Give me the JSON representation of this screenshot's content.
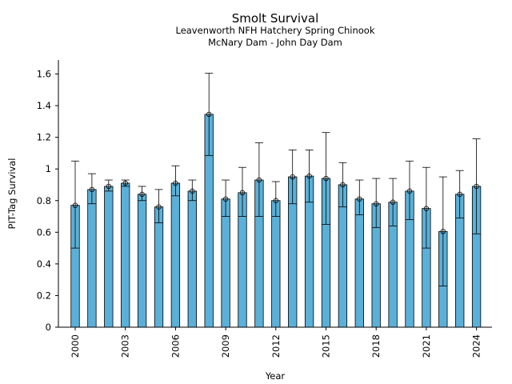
{
  "chart_data": {
    "type": "bar",
    "title": "Smolt Survival",
    "subtitle_lines": [
      "Leavenworth NFH Hatchery Spring Chinook",
      "McNary Dam - John Day Dam"
    ],
    "xlabel": "Year",
    "ylabel": "PIT-Tag Survival",
    "ylim": [
      0,
      1.7
    ],
    "yticks": [
      0,
      0.2,
      0.4,
      0.6,
      0.8,
      1,
      1.2,
      1.4,
      1.6
    ],
    "ytick_labels": [
      "0",
      "0.2",
      "0.4",
      "0.6",
      "0.8",
      "1",
      "1.2",
      "1.4",
      "1.6"
    ],
    "xtick_labels": [
      "2000",
      "2003",
      "2006",
      "2009",
      "2012",
      "2015",
      "2018",
      "2021",
      "2024"
    ],
    "grid": false,
    "bar_color": "#5ab0d8",
    "categories": [
      2000,
      2001,
      2002,
      2003,
      2004,
      2005,
      2006,
      2007,
      2008,
      2009,
      2010,
      2011,
      2012,
      2013,
      2014,
      2015,
      2016,
      2017,
      2018,
      2019,
      2020,
      2021,
      2022,
      2023,
      2024
    ],
    "values": [
      0.77,
      0.87,
      0.89,
      0.91,
      0.84,
      0.76,
      0.91,
      0.86,
      1.345,
      0.81,
      0.85,
      0.93,
      0.8,
      0.95,
      0.955,
      0.94,
      0.9,
      0.81,
      0.78,
      0.79,
      0.86,
      0.75,
      0.605,
      0.84,
      0.89
    ],
    "error_lower": [
      0.5,
      0.78,
      0.86,
      0.89,
      0.8,
      0.66,
      0.83,
      0.8,
      1.085,
      0.7,
      0.7,
      0.7,
      0.7,
      0.78,
      0.79,
      0.65,
      0.76,
      0.71,
      0.63,
      0.64,
      0.68,
      0.5,
      0.26,
      0.69,
      0.59
    ],
    "error_upper": [
      1.05,
      0.97,
      0.93,
      0.93,
      0.89,
      0.87,
      1.02,
      0.93,
      1.605,
      0.93,
      1.01,
      1.165,
      0.92,
      1.12,
      1.12,
      1.23,
      1.04,
      0.93,
      0.94,
      0.94,
      1.05,
      1.01,
      0.95,
      0.99,
      1.19
    ]
  }
}
